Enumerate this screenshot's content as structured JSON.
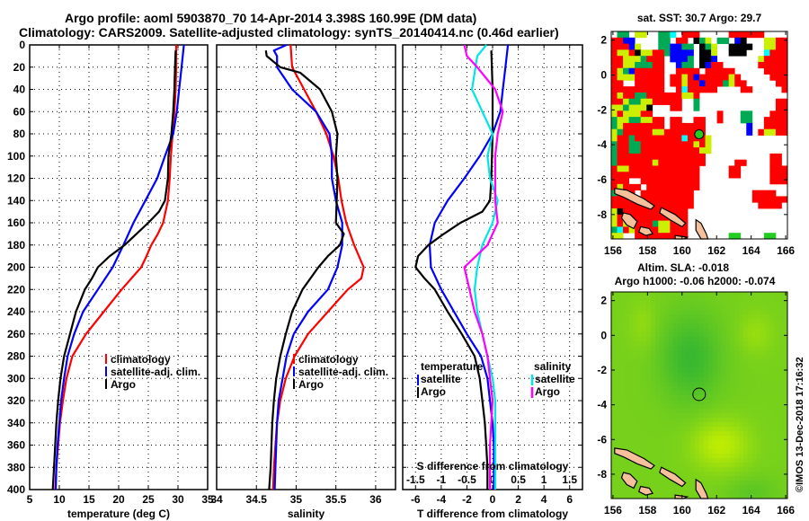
{
  "header": {
    "title_line1": "Argo profile: aoml 5903870_70 14-Apr-2014 3.398S 160.99E (DM data)",
    "title_line2": "Climatology: CARS2009. Satellite-adjusted climatology: synTS_20140414.nc (0.46d earlier)"
  },
  "colors": {
    "climatology": "#ff0000",
    "satellite": "#0000ff",
    "argo": "#000000",
    "salinity_satellite": "#00e5e5",
    "salinity_argo": "#ff00ff",
    "land": "#f5c09a"
  },
  "chart_data": [
    {
      "type": "line",
      "title": "",
      "xlabel": "temperature (deg C)",
      "ylabel": "",
      "xlim": [
        5,
        35
      ],
      "ylim": [
        400,
        0
      ],
      "xticks": [
        5,
        10,
        15,
        20,
        25,
        30,
        35
      ],
      "yticks": [
        0,
        20,
        40,
        60,
        80,
        100,
        120,
        140,
        160,
        180,
        200,
        220,
        240,
        260,
        280,
        300,
        320,
        340,
        360,
        380,
        400
      ],
      "grid": true,
      "legend": {
        "position": "lower-right",
        "entries": [
          "climatology",
          "satellite-adj. clim.",
          "Argo"
        ]
      },
      "series": [
        {
          "name": "climatology",
          "color_key": "climatology",
          "depth": [
            0,
            20,
            40,
            60,
            80,
            100,
            120,
            140,
            160,
            170,
            180,
            190,
            200,
            220,
            240,
            260,
            280,
            300,
            320,
            340,
            360,
            380,
            400
          ],
          "values": [
            29.7,
            29.7,
            29.6,
            29.4,
            29.1,
            28.8,
            28.6,
            28.3,
            27.5,
            26.6,
            25.5,
            24.7,
            23.8,
            20.5,
            17.5,
            14.5,
            12.2,
            11.2,
            10.6,
            10.1,
            9.8,
            9.5,
            9.3
          ]
        },
        {
          "name": "satellite-adj. clim.",
          "color_key": "satellite",
          "depth": [
            0,
            20,
            40,
            60,
            80,
            100,
            120,
            140,
            160,
            180,
            200,
            220,
            240,
            260,
            280,
            300,
            320,
            340,
            360,
            380,
            400
          ],
          "values": [
            31.0,
            30.6,
            30.2,
            29.8,
            29.2,
            27.8,
            26.5,
            24.5,
            22.5,
            20.8,
            19.0,
            16.5,
            14.0,
            12.5,
            11.4,
            10.8,
            10.3,
            10.0,
            9.7,
            9.5,
            9.4
          ]
        },
        {
          "name": "Argo",
          "color_key": "argo",
          "depth": [
            5,
            20,
            40,
            60,
            80,
            100,
            120,
            140,
            150,
            160,
            170,
            180,
            190,
            200,
            210,
            220,
            240,
            260,
            280,
            300,
            320,
            340,
            360,
            380,
            400
          ],
          "values": [
            29.6,
            29.5,
            29.4,
            29.2,
            28.9,
            28.4,
            28.3,
            27.8,
            26.8,
            25.0,
            23.0,
            21.0,
            18.5,
            16.5,
            15.5,
            14.3,
            12.8,
            11.8,
            10.8,
            10.2,
            9.8,
            9.5,
            9.3,
            9.1,
            8.9
          ]
        }
      ]
    },
    {
      "type": "line",
      "title": "",
      "xlabel": "salinity",
      "ylabel": "",
      "xlim": [
        34,
        36.25
      ],
      "ylim": [
        400,
        0
      ],
      "xticks": [
        34,
        34.5,
        35,
        35.5,
        36
      ],
      "grid": true,
      "legend": {
        "position": "lower-right",
        "entries": [
          "climatology",
          "satellite-adj. clim.",
          "Argo"
        ]
      },
      "series": [
        {
          "name": "climatology",
          "color_key": "climatology",
          "depth": [
            0,
            20,
            40,
            60,
            80,
            100,
            120,
            140,
            160,
            180,
            200,
            210,
            220,
            240,
            260,
            280,
            300,
            320,
            340,
            360,
            380,
            400
          ],
          "values": [
            34.93,
            34.95,
            35.1,
            35.25,
            35.38,
            35.47,
            35.53,
            35.57,
            35.63,
            35.73,
            35.85,
            35.82,
            35.65,
            35.4,
            35.15,
            34.98,
            34.87,
            34.8,
            34.76,
            34.74,
            34.72,
            34.71
          ]
        },
        {
          "name": "satellite-adj. clim.",
          "color_key": "satellite",
          "depth": [
            0,
            5,
            10,
            20,
            40,
            60,
            80,
            100,
            120,
            140,
            160,
            180,
            200,
            220,
            240,
            260,
            280,
            300,
            320,
            340,
            360,
            380,
            400
          ],
          "values": [
            34.88,
            34.72,
            34.76,
            34.76,
            34.95,
            35.25,
            35.42,
            35.45,
            35.45,
            35.5,
            35.58,
            35.58,
            35.52,
            35.4,
            35.15,
            34.97,
            34.88,
            34.83,
            34.78,
            34.76,
            34.75,
            34.74,
            34.73
          ]
        },
        {
          "name": "Argo",
          "color_key": "argo",
          "depth": [
            5,
            10,
            20,
            25,
            40,
            60,
            80,
            100,
            120,
            140,
            160,
            170,
            180,
            190,
            200,
            220,
            240,
            260,
            280,
            300,
            320,
            340,
            360,
            380,
            400
          ],
          "values": [
            34.62,
            34.63,
            34.8,
            35.05,
            35.3,
            35.45,
            35.52,
            35.5,
            35.52,
            35.51,
            35.5,
            35.6,
            35.55,
            35.4,
            35.28,
            35.08,
            34.95,
            34.87,
            34.8,
            34.75,
            34.72,
            34.7,
            34.69,
            34.68,
            34.66
          ]
        }
      ]
    },
    {
      "type": "line",
      "title": "",
      "xlabel": "T difference from climatology",
      "x2label": "S difference from climatology",
      "ylabel": "",
      "xlim": [
        -7,
        7
      ],
      "x2lim": [
        -1.75,
        1.75
      ],
      "ylim": [
        400,
        0
      ],
      "xticks": [
        -6,
        -4,
        -2,
        0,
        2,
        4,
        6
      ],
      "x2ticks": [
        "-1.5",
        "-1",
        "-0.5",
        "0",
        "0.5",
        "1",
        "1.5"
      ],
      "grid": true,
      "legend": {
        "position": "lower",
        "temperature_title": "temperature",
        "salinity_title": "salinity",
        "temperature_entries": [
          "satellite",
          "Argo"
        ],
        "salinity_entries": [
          "satellite",
          "Argo"
        ]
      },
      "series": [
        {
          "name": "temperature satellite",
          "axis": "T",
          "color_key": "satellite",
          "depth": [
            0,
            20,
            40,
            60,
            80,
            100,
            120,
            140,
            160,
            180,
            200,
            220,
            240,
            260,
            280,
            300,
            320,
            340,
            360,
            380,
            400
          ],
          "values": [
            1.2,
            1.0,
            0.8,
            0.6,
            0.0,
            -1.0,
            -2.2,
            -3.5,
            -4.5,
            -4.9,
            -4.8,
            -4.0,
            -3.0,
            -2.0,
            -0.9,
            -0.4,
            -0.2,
            0.0,
            0.1,
            0.1,
            0.1
          ]
        },
        {
          "name": "temperature Argo",
          "axis": "T",
          "color_key": "argo",
          "depth": [
            5,
            40,
            80,
            120,
            140,
            150,
            160,
            170,
            180,
            190,
            200,
            210,
            220,
            240,
            260,
            280,
            300,
            320,
            340,
            360,
            380,
            400
          ],
          "values": [
            -0.1,
            0.0,
            0.0,
            -0.1,
            -0.2,
            -0.8,
            -2.5,
            -3.8,
            -5.0,
            -5.8,
            -6.0,
            -5.3,
            -4.5,
            -3.5,
            -2.4,
            -1.4,
            -1.0,
            -0.8,
            -0.6,
            -0.5,
            -0.4,
            -0.4
          ]
        },
        {
          "name": "salinity satellite",
          "axis": "S",
          "color_key": "salinity_satellite",
          "depth": [
            0,
            10,
            40,
            60,
            80,
            100,
            120,
            140,
            160,
            180,
            200,
            220,
            240,
            260,
            280,
            300,
            320,
            340,
            360,
            380,
            400
          ],
          "values": [
            -0.12,
            -0.3,
            -0.4,
            -0.2,
            0.0,
            -0.1,
            -0.05,
            0.1,
            0.0,
            -0.2,
            -0.3,
            -0.35,
            -0.3,
            -0.2,
            -0.1,
            0.0,
            0.05,
            0.05,
            0.05,
            0.05,
            0.05
          ]
        },
        {
          "name": "salinity Argo",
          "axis": "S",
          "color_key": "salinity_argo",
          "depth": [
            0,
            10,
            20,
            40,
            60,
            80,
            100,
            120,
            140,
            160,
            180,
            200,
            210,
            220,
            240,
            260,
            280,
            300,
            320,
            360,
            400
          ],
          "values": [
            -0.55,
            -0.5,
            -0.3,
            0.05,
            0.2,
            0.1,
            0.05,
            0.05,
            0.05,
            0.1,
            -0.1,
            -0.55,
            -0.5,
            -0.45,
            -0.35,
            -0.2,
            -0.1,
            -0.05,
            0.0,
            -0.05,
            -0.05
          ]
        }
      ]
    },
    {
      "type": "heatmap",
      "title": "sat. SST: 30.7 Argo: 29.7",
      "xlim": [
        155.9,
        166.1
      ],
      "ylim": [
        -9.4,
        2.5
      ],
      "xticks": [
        156,
        158,
        160,
        162,
        164,
        166
      ],
      "yticks": [
        2,
        0,
        -2,
        -4,
        -6,
        -8
      ],
      "profile_location": {
        "lon": 160.99,
        "lat": -3.398
      },
      "legend_codes": {
        "W": "#ffffff",
        "R": "#ff0000",
        "Y": "#ccee00",
        "G": "#00aa55",
        "L": "#22cc22",
        "B": "#0000ff",
        "K": "#000000",
        "C": "#00ffff"
      },
      "grid_rows": [
        "WGGWYYWWGGCWRRRWWWWWRRRRRRWWWW",
        "RRBBWWWWGGWRRWKGYWGGWBKWWWYYRR",
        "RRRBYWWWGGBBGGWKGYWWKKKKWWYYRR",
        "RYYRKYYRRGBBBBWKKYWWKKKWWWCRRR",
        "RRYYYGRRRWBBBGWKKBWWWWWWWYRRRR",
        "RRYYGGGRRWWBGGWKBRRWWWWWWRRRRR",
        "RYGBRRRRRWWRRRRWRRRRRWWWWWRRRR",
        "RYYYRRRRRWRRYRBRRRRRYRWWWWWRRR",
        "RRWWRRRRRWRRYRRBRRRGYRRWWWWWRR",
        "RRRRRRRRRWWRCRRRRRWWWWRRWWWWWR",
        "RYRRGGRRRRRRYYRWWWWWWWWWWWWWWW",
        "RRYGGYYRRRRRWWGWWWWWWWWWWWWWRR",
        "YYGYYYKWWWRRWWGWWWWWWWWWWWWWRR",
        "YRYYYRRWWWWWWWWWWWRWWWGGWWWRRR",
        "GYYGGYYRRWRRWWRRWWRWWWGGWWRRRR",
        "GYRRRRRRRWRRRRRRWWWWWWWBWWRRRR",
        "YGRRRRRYYRRRRRRRWWWWWWWBWRYYRR",
        "YRRGRRRRRRRRCRRRYWWWWWWWWWWWWW",
        "GRRGGRRRRRRRRRYRYWWWWWWWWWWWWW",
        "GRRGGRRRRRRRRRRYYWWWWWWWWWWWWW",
        "GRRRRRRRRRRRRRRRWWWWWWWWWWWRRW",
        "GRRRRRRYRRRRRRRRWWWWWRRWWWWRRW",
        "RYYRRRRRRRRRRRRWWWWWRRWWWWWRRR",
        "RRRRRRRRRRRRRRRWWWWWRRWWWWWRRR",
        "RRRWWRRRRRRRRRRWWWWWWWWWWWWRRR",
        "RYRRRWRRRRRRRRRWWWWWWWWWWWWWWW",
        "GRRRWRRRRRRRRRWWWWWWWWWWRRRRWW",
        "RRRRRRRRRRRRRRWWWWWWWWWWRRRRRR",
        "RRRRRRRRRRRRRRWWWWWWWWWWWRRRRW",
        "YKRRRRRRRRRRRWWWWWWWWWWWWWWWWW",
        "YRRRRRRRRRRRRWWWWWWWWWWWWWWWWW",
        "YRYRRRRGYYRRRWWWWWWWWWWWWWWWWW",
        "GCRYRRRRYYRRRWWWWWWWWWWWWWWWWW",
        "YYWWRRRRRRRRRWWWWWWWLLWWWWLLWW"
      ]
    },
    {
      "type": "heatmap",
      "title_line1": "Altim. SLA: -0.018",
      "title_line2": "Argo h1000: -0.06 h2000: -0.074",
      "xlim": [
        155.9,
        166.1
      ],
      "ylim": [
        -9.4,
        2.5
      ],
      "xticks": [
        156,
        158,
        160,
        162,
        164,
        166
      ],
      "yticks": [
        2,
        0,
        -2,
        -4,
        -6,
        -8
      ],
      "profile_location": {
        "lon": 160.99,
        "lat": -3.398
      },
      "sla_field_note": "green shades; darker near 159-161E, 1-4S; lighter yellow-green near 162E 7S"
    }
  ],
  "footer": {
    "credit": "©IMOS 13-Dec-2018 17:16:32"
  }
}
